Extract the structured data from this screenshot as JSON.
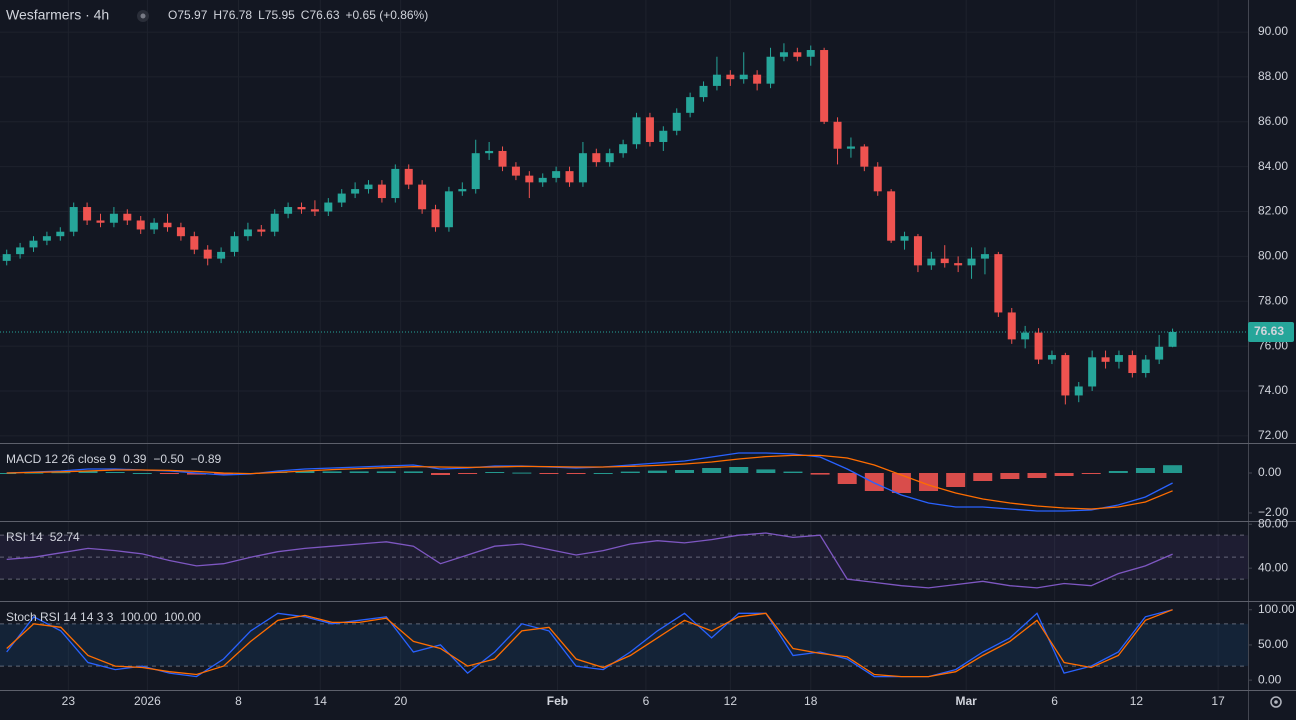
{
  "chart_data": [
    {
      "type": "candlestick",
      "title": "Wesfarmers · 4h",
      "ohlc_labels": [
        "O",
        "H",
        "L",
        "C"
      ],
      "change_text": "+0.65 (+0.86%)",
      "up_color": "#26a69a",
      "down_color": "#ef5350",
      "grid": true,
      "xlim": [
        -0.5,
        92.63
      ],
      "xticks": [
        {
          "value": 4.6,
          "label": "23"
        },
        {
          "value": 10.5,
          "label": "2026"
        },
        {
          "value": 17.3,
          "label": "8"
        },
        {
          "value": 23.4,
          "label": "14"
        },
        {
          "value": 29.4,
          "label": "20"
        },
        {
          "value": 41.1,
          "label": "Feb"
        },
        {
          "value": 47.7,
          "label": "6"
        },
        {
          "value": 54,
          "label": "12"
        },
        {
          "value": 60,
          "label": "18"
        },
        {
          "value": 71.6,
          "label": "Mar"
        },
        {
          "value": 78.2,
          "label": "6"
        },
        {
          "value": 84.3,
          "label": "12"
        },
        {
          "value": 90.4,
          "label": "17"
        }
      ],
      "ylim": [
        71.68,
        91.43
      ],
      "yticks": [
        {
          "value": 72,
          "label": "72.00"
        },
        {
          "value": 74,
          "label": "74.00"
        },
        {
          "value": 76,
          "label": "76.00"
        },
        {
          "value": 78,
          "label": "78.00"
        },
        {
          "value": 80,
          "label": "80.00"
        },
        {
          "value": 82,
          "label": "82.00"
        },
        {
          "value": 84,
          "label": "84.00"
        },
        {
          "value": 86,
          "label": "86.00"
        },
        {
          "value": 88,
          "label": "88.00"
        },
        {
          "value": 90,
          "label": "90.00"
        }
      ],
      "ohlc": [
        [
          79.8,
          80.3,
          79.6,
          80.1
        ],
        [
          80.1,
          80.6,
          79.9,
          80.4
        ],
        [
          80.4,
          80.9,
          80.2,
          80.7
        ],
        [
          80.7,
          81.1,
          80.5,
          80.9
        ],
        [
          80.9,
          81.3,
          80.7,
          81.1
        ],
        [
          81.1,
          82.4,
          80.9,
          82.2
        ],
        [
          82.2,
          82.4,
          81.4,
          81.6
        ],
        [
          81.6,
          81.9,
          81.3,
          81.5
        ],
        [
          81.5,
          82.2,
          81.3,
          81.9
        ],
        [
          81.9,
          82.1,
          81.4,
          81.6
        ],
        [
          81.6,
          81.8,
          81.0,
          81.2
        ],
        [
          81.2,
          81.7,
          81.0,
          81.5
        ],
        [
          81.5,
          81.9,
          81.1,
          81.3
        ],
        [
          81.3,
          81.5,
          80.7,
          80.9
        ],
        [
          80.9,
          81.1,
          80.1,
          80.3
        ],
        [
          80.3,
          80.5,
          79.6,
          79.9
        ],
        [
          79.9,
          80.4,
          79.7,
          80.2
        ],
        [
          80.2,
          81.1,
          80.0,
          80.9
        ],
        [
          80.9,
          81.5,
          80.7,
          81.2
        ],
        [
          81.2,
          81.4,
          80.9,
          81.1
        ],
        [
          81.1,
          82.1,
          80.9,
          81.9
        ],
        [
          81.9,
          82.4,
          81.7,
          82.2
        ],
        [
          82.2,
          82.4,
          81.9,
          82.1
        ],
        [
          82.1,
          82.5,
          81.8,
          82.0
        ],
        [
          82.0,
          82.6,
          81.8,
          82.4
        ],
        [
          82.4,
          83.0,
          82.2,
          82.8
        ],
        [
          82.8,
          83.3,
          82.6,
          83.0
        ],
        [
          83.0,
          83.4,
          82.8,
          83.2
        ],
        [
          83.2,
          83.4,
          82.4,
          82.6
        ],
        [
          82.6,
          84.1,
          82.4,
          83.9
        ],
        [
          83.9,
          84.1,
          83.0,
          83.2
        ],
        [
          83.2,
          83.4,
          81.9,
          82.1
        ],
        [
          82.1,
          82.3,
          81.1,
          81.3
        ],
        [
          81.3,
          83.1,
          81.1,
          82.9
        ],
        [
          82.9,
          83.3,
          82.7,
          83.0
        ],
        [
          83.0,
          85.2,
          82.8,
          84.6
        ],
        [
          84.6,
          85.1,
          84.3,
          84.7
        ],
        [
          84.7,
          84.9,
          83.8,
          84.0
        ],
        [
          84.0,
          84.2,
          83.4,
          83.6
        ],
        [
          83.6,
          83.8,
          82.6,
          83.3
        ],
        [
          83.3,
          83.7,
          83.1,
          83.5
        ],
        [
          83.5,
          84.0,
          83.3,
          83.8
        ],
        [
          83.8,
          84.0,
          83.1,
          83.3
        ],
        [
          83.3,
          85.1,
          83.1,
          84.6
        ],
        [
          84.6,
          84.8,
          84.0,
          84.2
        ],
        [
          84.2,
          84.8,
          84.0,
          84.6
        ],
        [
          84.6,
          85.2,
          84.4,
          85.0
        ],
        [
          85.0,
          86.4,
          84.8,
          86.2
        ],
        [
          86.2,
          86.4,
          84.9,
          85.1
        ],
        [
          85.1,
          85.8,
          84.7,
          85.6
        ],
        [
          85.6,
          86.6,
          85.4,
          86.4
        ],
        [
          86.4,
          87.3,
          86.2,
          87.1
        ],
        [
          87.1,
          87.8,
          86.9,
          87.6
        ],
        [
          87.6,
          88.9,
          87.4,
          88.1
        ],
        [
          88.1,
          88.3,
          87.6,
          87.9
        ],
        [
          87.9,
          89.1,
          87.7,
          88.1
        ],
        [
          88.1,
          88.3,
          87.4,
          87.7
        ],
        [
          87.7,
          89.3,
          87.5,
          88.9
        ],
        [
          88.9,
          89.5,
          88.7,
          89.1
        ],
        [
          89.1,
          89.3,
          88.7,
          88.9
        ],
        [
          88.9,
          89.4,
          88.5,
          89.2
        ],
        [
          89.2,
          89.3,
          85.9,
          86.0
        ],
        [
          86.0,
          86.2,
          84.1,
          84.8
        ],
        [
          84.8,
          85.3,
          84.4,
          84.9
        ],
        [
          84.9,
          85.0,
          83.8,
          84.0
        ],
        [
          84.0,
          84.2,
          82.7,
          82.9
        ],
        [
          82.9,
          83.0,
          80.6,
          80.7
        ],
        [
          80.7,
          81.1,
          80.3,
          80.9
        ],
        [
          80.9,
          81.0,
          79.3,
          79.6
        ],
        [
          79.6,
          80.2,
          79.4,
          79.9
        ],
        [
          79.9,
          80.5,
          79.5,
          79.7
        ],
        [
          79.7,
          80.0,
          79.3,
          79.6
        ],
        [
          79.6,
          80.4,
          79.0,
          79.9
        ],
        [
          79.9,
          80.4,
          79.2,
          80.1
        ],
        [
          80.1,
          80.2,
          77.3,
          77.5
        ],
        [
          77.5,
          77.7,
          76.1,
          76.3
        ],
        [
          76.3,
          76.9,
          75.9,
          76.6
        ],
        [
          76.6,
          76.8,
          75.2,
          75.4
        ],
        [
          75.4,
          75.8,
          75.2,
          75.6
        ],
        [
          75.6,
          75.7,
          73.4,
          73.8
        ],
        [
          73.8,
          74.4,
          73.5,
          74.2
        ],
        [
          74.2,
          75.8,
          74.0,
          75.5
        ],
        [
          75.5,
          75.8,
          75.0,
          75.3
        ],
        [
          75.3,
          75.8,
          75.0,
          75.6
        ],
        [
          75.6,
          75.8,
          74.6,
          74.8
        ],
        [
          74.8,
          75.6,
          74.6,
          75.4
        ],
        [
          75.4,
          76.5,
          75.2,
          75.97
        ],
        [
          75.97,
          76.78,
          75.95,
          76.63
        ]
      ]
    },
    {
      "type": "indicator",
      "title": "MACD 12 26 close 9",
      "ylim": [
        -2.35,
        1.45
      ],
      "yticks": [
        {
          "value": 0,
          "label": "0.00"
        },
        {
          "value": -2,
          "label": "−2.00"
        }
      ],
      "series": [
        {
          "kind": "histogram",
          "color": "#26a69a",
          "down_color": "#ef5350",
          "values": [
            0,
            0.02,
            0.04,
            0.1,
            0.05,
            0,
            -0.03,
            -0.08,
            -0.1,
            -0.02,
            0.07,
            0.1,
            0.08,
            0.08,
            0.08,
            0.08,
            -0.1,
            -0.03,
            0.05,
            0.02,
            -0.02,
            -0.05,
            0,
            0.07,
            0.12,
            0.15,
            0.25,
            0.3,
            0.18,
            0.07,
            -0.08,
            -0.55,
            -0.9,
            -1.0,
            -0.9,
            -0.7,
            -0.4,
            -0.3,
            -0.25,
            -0.15,
            -0.05,
            0.1,
            0.25,
            0.39
          ]
        },
        {
          "kind": "line",
          "color": "#2962ff",
          "values": [
            0,
            0.05,
            0.1,
            0.2,
            0.2,
            0.15,
            0.1,
            0,
            -0.1,
            -0.05,
            0.1,
            0.2,
            0.25,
            0.3,
            0.35,
            0.4,
            0.2,
            0.25,
            0.35,
            0.35,
            0.3,
            0.25,
            0.3,
            0.4,
            0.5,
            0.6,
            0.8,
            1.0,
            1.0,
            0.95,
            0.8,
            0.2,
            -0.5,
            -1.1,
            -1.5,
            -1.7,
            -1.7,
            -1.8,
            -1.9,
            -1.9,
            -1.85,
            -1.6,
            -1.2,
            -0.5
          ],
          "value_labels": [
            null,
            null,
            null,
            null,
            null,
            null,
            null,
            null,
            null,
            null,
            null,
            null,
            null,
            null,
            null,
            null,
            null,
            null,
            null,
            null,
            null,
            null,
            null,
            null,
            null,
            null,
            null,
            null,
            null,
            null,
            null,
            null,
            null,
            null,
            null,
            null,
            null,
            null,
            null,
            null,
            null,
            null,
            null,
            "−0.50"
          ]
        },
        {
          "kind": "line",
          "color": "#ff6d00",
          "values": [
            0,
            0.03,
            0.06,
            0.1,
            0.15,
            0.15,
            0.13,
            0.08,
            0,
            -0.03,
            0.03,
            0.1,
            0.17,
            0.22,
            0.27,
            0.32,
            0.3,
            0.28,
            0.3,
            0.33,
            0.32,
            0.3,
            0.3,
            0.33,
            0.38,
            0.45,
            0.55,
            0.7,
            0.82,
            0.88,
            0.88,
            0.75,
            0.4,
            -0.1,
            -0.6,
            -1.0,
            -1.3,
            -1.5,
            -1.65,
            -1.75,
            -1.8,
            -1.7,
            -1.45,
            -0.89
          ],
          "value_labels": [
            null,
            null,
            null,
            null,
            null,
            null,
            null,
            null,
            null,
            null,
            null,
            null,
            null,
            null,
            null,
            null,
            null,
            null,
            null,
            null,
            null,
            null,
            null,
            null,
            null,
            null,
            null,
            null,
            null,
            null,
            null,
            null,
            null,
            null,
            null,
            null,
            null,
            null,
            null,
            null,
            null,
            null,
            null,
            "−0.89"
          ]
        }
      ]
    },
    {
      "type": "indicator",
      "title": "RSI 14",
      "ylim": [
        11,
        82
      ],
      "bands": [
        30,
        50,
        70
      ],
      "band_color": "#7e57c2",
      "yticks": [
        {
          "value": 80,
          "label": "80.00"
        },
        {
          "value": 40,
          "label": "40.00"
        }
      ],
      "series": [
        {
          "kind": "line",
          "color": "#7e57c2",
          "values": [
            48,
            50,
            54,
            58,
            56,
            53,
            47,
            42,
            44,
            50,
            55,
            58,
            60,
            62,
            64,
            60,
            44,
            52,
            60,
            62,
            57,
            52,
            56,
            62,
            65,
            63,
            66,
            70,
            72,
            68,
            70,
            30,
            27,
            24,
            22,
            25,
            28,
            24,
            22,
            26,
            24,
            35,
            42,
            52.74
          ]
        }
      ]
    },
    {
      "type": "indicator",
      "title": "Stoch RSI 14 14 3 3",
      "ylim": [
        -14,
        111
      ],
      "bands": [
        20,
        80
      ],
      "band_color": "#2196f3",
      "yticks": [
        {
          "value": 100,
          "label": "100.00"
        },
        {
          "value": 50,
          "label": "50.00"
        },
        {
          "value": 0,
          "label": "0.00"
        }
      ],
      "series": [
        {
          "kind": "line",
          "color": "#2962ff",
          "values": [
            40,
            90,
            70,
            25,
            15,
            20,
            10,
            5,
            30,
            70,
            95,
            90,
            80,
            85,
            90,
            40,
            50,
            10,
            40,
            80,
            70,
            20,
            15,
            40,
            70,
            95,
            60,
            95,
            95,
            35,
            40,
            30,
            5,
            5,
            5,
            15,
            40,
            60,
            95,
            10,
            20,
            40,
            90,
            100
          ],
          "value_labels": [
            null,
            null,
            null,
            null,
            null,
            null,
            null,
            null,
            null,
            null,
            null,
            null,
            null,
            null,
            null,
            null,
            null,
            null,
            null,
            null,
            null,
            null,
            null,
            null,
            null,
            null,
            null,
            null,
            null,
            null,
            null,
            null,
            null,
            null,
            null,
            null,
            null,
            null,
            null,
            null,
            null,
            null,
            null,
            "100.00"
          ]
        },
        {
          "kind": "line",
          "color": "#ff6d00",
          "values": [
            45,
            80,
            75,
            35,
            20,
            18,
            12,
            8,
            20,
            55,
            85,
            92,
            82,
            82,
            88,
            55,
            45,
            20,
            30,
            70,
            75,
            30,
            18,
            35,
            60,
            85,
            70,
            90,
            95,
            45,
            38,
            33,
            8,
            5,
            5,
            12,
            35,
            55,
            85,
            25,
            18,
            35,
            85,
            100
          ],
          "value_labels": [
            null,
            null,
            null,
            null,
            null,
            null,
            null,
            null,
            null,
            null,
            null,
            null,
            null,
            null,
            null,
            null,
            null,
            null,
            null,
            null,
            null,
            null,
            null,
            null,
            null,
            null,
            null,
            null,
            null,
            null,
            null,
            null,
            null,
            null,
            null,
            null,
            null,
            null,
            null,
            null,
            null,
            null,
            null,
            "100.00"
          ]
        }
      ]
    }
  ]
}
